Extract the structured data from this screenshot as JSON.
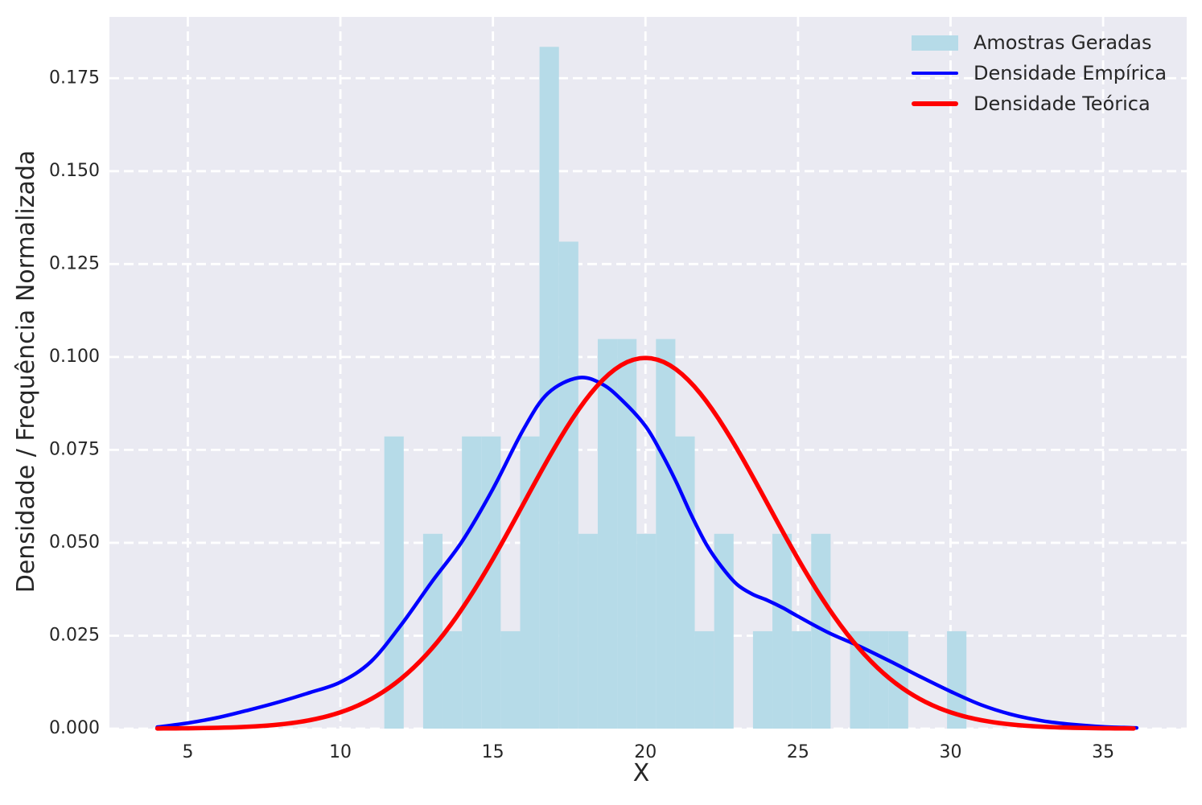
{
  "figure": {
    "background": "#ffffff",
    "plot_background": "#eaeaf2",
    "grid_color": "#ffffff",
    "text_color": "#262626"
  },
  "chart_data": {
    "type": "histogram+lines",
    "title": "",
    "xlabel": "X",
    "ylabel": "Densidade / Frequência Normalizada",
    "xlim": [
      2.43,
      37.74
    ],
    "ylim": [
      0,
      0.1915
    ],
    "grid": {
      "on": true,
      "style": "dashed",
      "color": "#ffffff"
    },
    "xticks": [
      5,
      10,
      15,
      20,
      25,
      30,
      35
    ],
    "yticks": [
      0.0,
      0.025,
      0.05,
      0.075,
      0.1,
      0.125,
      0.15,
      0.175
    ],
    "ytick_labels": [
      "0.000",
      "0.025",
      "0.050",
      "0.075",
      "0.100",
      "0.125",
      "0.150",
      "0.175"
    ],
    "histogram": {
      "label": "Amostras Geradas",
      "color": "#ADD8E6",
      "alpha": 0.85,
      "n_samples": 60,
      "bin_start": 11.44,
      "bin_width": 0.636,
      "counts": [
        3,
        0,
        2,
        1,
        3,
        3,
        1,
        3,
        7,
        5,
        2,
        4,
        4,
        2,
        4,
        3,
        1,
        2,
        0,
        1,
        2,
        1,
        2,
        0,
        1,
        1,
        1,
        0,
        0,
        1
      ]
    },
    "empirical_density": {
      "label": "Densidade Empírica",
      "color": "#0000FF",
      "line_width": 4.5,
      "points": [
        [
          4,
          0.0004
        ],
        [
          5,
          0.0015
        ],
        [
          6,
          0.003
        ],
        [
          7,
          0.005
        ],
        [
          8,
          0.0072
        ],
        [
          9,
          0.0097
        ],
        [
          10,
          0.0125
        ],
        [
          11,
          0.018
        ],
        [
          12,
          0.028
        ],
        [
          13,
          0.0395
        ],
        [
          14,
          0.0505
        ],
        [
          15,
          0.0645
        ],
        [
          16,
          0.0805
        ],
        [
          16.8,
          0.0902
        ],
        [
          17.8,
          0.0944
        ],
        [
          18.6,
          0.0926
        ],
        [
          19.3,
          0.0878
        ],
        [
          20,
          0.0814
        ],
        [
          20.5,
          0.0745
        ],
        [
          21,
          0.0665
        ],
        [
          21.5,
          0.0575
        ],
        [
          22,
          0.0495
        ],
        [
          22.5,
          0.0435
        ],
        [
          23,
          0.0388
        ],
        [
          23.5,
          0.0362
        ],
        [
          24,
          0.0345
        ],
        [
          24.5,
          0.0325
        ],
        [
          25,
          0.0302
        ],
        [
          26,
          0.0258
        ],
        [
          27,
          0.0222
        ],
        [
          28,
          0.0182
        ],
        [
          29,
          0.014
        ],
        [
          30,
          0.01
        ],
        [
          31,
          0.0064
        ],
        [
          32,
          0.0038
        ],
        [
          33,
          0.0021
        ],
        [
          34,
          0.0011
        ],
        [
          35,
          0.0005
        ],
        [
          36.1,
          0.0002
        ]
      ]
    },
    "theoretical_density": {
      "label": "Densidade Teórica",
      "color": "#FF0000",
      "line_width": 5.5,
      "distribution": "normal",
      "mean": 20,
      "std": 4,
      "x_range": [
        4,
        36
      ],
      "peak_density": 0.0997
    },
    "legend": {
      "position": "upper right",
      "frame": false,
      "entries": [
        {
          "label": "Amostras Geradas",
          "type": "patch",
          "color": "#ADD8E6"
        },
        {
          "label": "Densidade Empírica",
          "type": "line",
          "color": "#0000FF"
        },
        {
          "label": "Densidade Teórica",
          "type": "line",
          "color": "#FF0000"
        }
      ]
    }
  }
}
